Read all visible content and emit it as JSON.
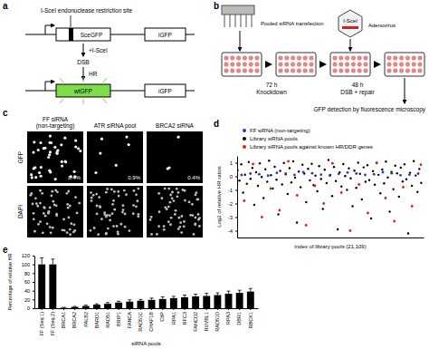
{
  "panel_labels": [
    "a",
    "b",
    "c",
    "d",
    "e"
  ],
  "panel_a": {
    "site_label": "I-SceI endonuclease restriction site",
    "construct_1": [
      "SceGFP",
      "iGFP"
    ],
    "enzyme": "+I-SceI",
    "dsb": "DSB",
    "repair": "HR",
    "construct_2": [
      "wtGFP",
      "iGFP"
    ]
  },
  "panel_b": {
    "transfection": "Pooled siRNA transfection",
    "enzyme": "I-SceI",
    "vector": "Adenovirus",
    "steps": [
      {
        "time": "72 h",
        "label": "Knockdown"
      },
      {
        "time": "48 h",
        "label": "DSB + repair"
      }
    ],
    "readout": "GFP detection by fluorescence microscopy"
  },
  "panel_c": {
    "columns": [
      {
        "title": [
          "FF siRNA",
          "(non-targeting)"
        ],
        "gfp_percent": "8.4%"
      },
      {
        "title": [
          "ATR siRNA pool"
        ],
        "gfp_percent": "0.9%"
      },
      {
        "title": [
          "BRCA2 siRNA"
        ],
        "gfp_percent": "0.4%"
      }
    ],
    "rows": [
      "GFP",
      "DAPI"
    ]
  },
  "chart_data": [
    {
      "type": "scatter",
      "y_label": "Log2 of relative HR ratios",
      "x_label": "Index of library pools (21,109)",
      "xlim": [
        0,
        21109
      ],
      "ylim": [
        -4.5,
        1.5
      ],
      "yticks": [
        -4,
        -3,
        -2,
        -1,
        0,
        1
      ],
      "tick_labels": "y",
      "legend": "top",
      "series": [
        {
          "name": "FF siRNA (non-targeting)",
          "color": "#3333cc",
          "marker": "circle",
          "x": [
            500,
            1500,
            2500,
            3500,
            4500,
            5500,
            6500,
            7500,
            8500,
            9500,
            10500,
            11500,
            12500,
            13500,
            14500,
            15500,
            16500,
            17500,
            18500,
            19500,
            20500
          ],
          "values": [
            0.1,
            0.2,
            0.15,
            0.05,
            0.25,
            0.2,
            0.1,
            0.3,
            0.22,
            0.12,
            0.05,
            0.18,
            0.28,
            0.2,
            0.1,
            0.15,
            0.3,
            0.22,
            0.08,
            0.12,
            0.2
          ]
        },
        {
          "name": "Library siRNA pools",
          "color": "#000000",
          "marker": "circle",
          "x": [
            50,
            260,
            470,
            680,
            890,
            1100,
            1310,
            1520,
            1730,
            1940,
            2150,
            2360,
            2570,
            2780,
            2990,
            3200,
            3410,
            3620,
            3830,
            4040,
            4250,
            4460,
            4670,
            4880,
            5090,
            5300,
            5510,
            5720,
            5930,
            6140,
            6350,
            6560,
            6770,
            6980,
            7190,
            7400,
            7610,
            7820,
            8030,
            8240,
            8450,
            8660,
            8870,
            9080,
            9290,
            9500,
            9710,
            9920,
            10130,
            10340,
            10550,
            10760,
            10970,
            11180,
            11390,
            11600,
            11810,
            12020,
            12230,
            12440,
            12650,
            12860,
            13070,
            13280,
            13490,
            13700,
            13910,
            14120,
            14330,
            14540,
            14750,
            14960,
            15170,
            15380,
            15590,
            15800,
            16010,
            16220,
            16430,
            16640,
            16850,
            17060,
            17270,
            17480,
            17690,
            17900,
            18110,
            18320,
            18530,
            18740,
            18950,
            19160,
            19370,
            19580,
            19790,
            20000,
            20210,
            20420,
            20630,
            20840
          ],
          "values": [
            0.45,
            -0.32,
            0.88,
            -1.2,
            0.12,
            -0.55,
            1.05,
            -0.18,
            0.62,
            -2.1,
            0.3,
            -0.7,
            0.95,
            -0.05,
            -1.6,
            0.52,
            -0.4,
            1.15,
            0.08,
            -0.9,
            0.7,
            -0.25,
            -2.8,
            0.4,
            -0.6,
            0.98,
            0.15,
            -1.3,
            0.6,
            -0.45,
            1.1,
            -0.1,
            -3.4,
            0.35,
            -0.8,
            0.85,
            0.2,
            -1.9,
            0.55,
            -0.3,
            0.92,
            -0.65,
            0.05,
            -1.1,
            0.75,
            -0.2,
            -2.4,
            0.48,
            -0.5,
            1.2,
            0.1,
            -1.45,
            0.68,
            -0.35,
            -3.9,
            0.28,
            -0.75,
            0.9,
            0.02,
            -1.0,
            0.58,
            -0.15,
            -2.2,
            0.42,
            -0.85,
            1.0,
            0.18,
            -1.7,
            0.66,
            -0.4,
            0.82,
            -0.28,
            -3.1,
            0.38,
            -0.62,
            0.96,
            0.11,
            -1.25,
            0.5,
            -0.52,
            1.08,
            -0.08,
            -2.6,
            0.32,
            -0.95,
            0.78,
            0.22,
            -1.5,
            0.64,
            -0.38,
            0.88,
            -0.22,
            -4.2,
            0.26,
            -0.7,
            1.12,
            0.06,
            -1.15,
            0.54,
            -0.48
          ]
        },
        {
          "name": "Library siRNA pools against known HR/DDR genes",
          "color": "#e0201b",
          "marker": "circle",
          "x": [
            800,
            1800,
            2800,
            3800,
            4800,
            5800,
            6800,
            7800,
            8800,
            9800,
            10800,
            11800,
            12800,
            13800,
            14800,
            15800,
            16800,
            17800,
            18800,
            19800,
            20800
          ],
          "values": [
            -1.8,
            0.9,
            -3.0,
            -0.9,
            -2.5,
            1.1,
            -1.4,
            -3.6,
            -0.7,
            -2.0,
            0.95,
            -1.2,
            -4.0,
            -0.6,
            -2.7,
            1.0,
            -1.6,
            -3.3,
            -0.8,
            -2.2,
            0.85
          ]
        }
      ]
    },
    {
      "type": "bar",
      "y_label": "Percentage of relative HR",
      "x_label": "siRNA pools",
      "categories": [
        "FF (Seq 1)",
        "FF (Seq 2)",
        "BRCA1",
        "BRCA2",
        "PALB2",
        "BARD1",
        "RAD51",
        "BRIP1",
        "FANCA",
        "RAD51C",
        "CHAF1B",
        "CtIP",
        "RPA1",
        "RFC3",
        "FANCD2",
        "RUVBL1",
        "RAD51D",
        "RPA3",
        "DBR1",
        "RBCK1"
      ],
      "values": [
        100,
        100,
        1,
        3,
        5,
        8,
        10,
        13,
        15,
        17,
        19,
        21,
        23,
        25,
        27,
        28,
        30,
        33,
        35,
        38
      ],
      "errors": [
        15,
        12,
        1,
        1,
        2,
        2,
        3,
        3,
        4,
        3,
        4,
        5,
        4,
        5,
        5,
        6,
        5,
        6,
        6,
        7
      ],
      "color": "#000000",
      "ylim": [
        0,
        120
      ],
      "yticks": [
        0,
        20,
        40,
        60,
        80,
        100,
        120
      ]
    }
  ]
}
